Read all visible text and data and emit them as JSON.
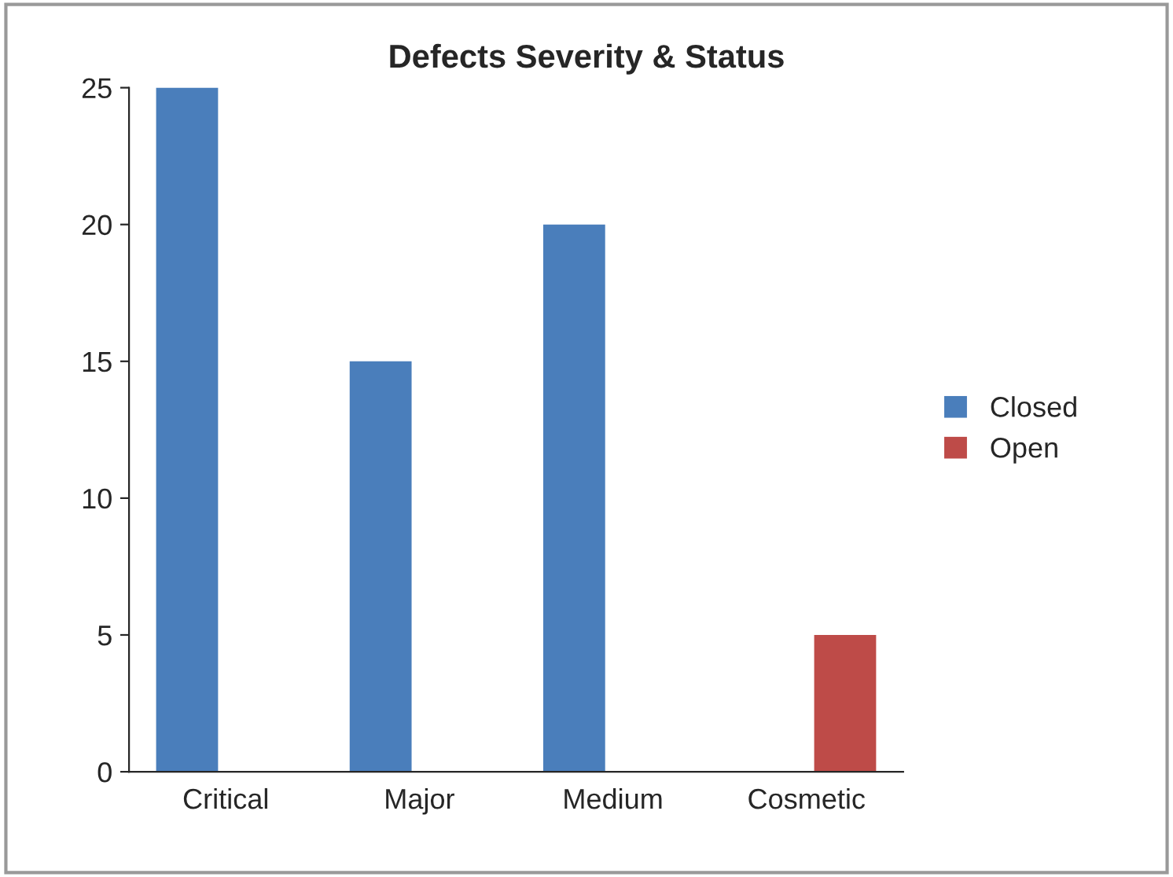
{
  "chart_data": {
    "type": "bar",
    "title": "Defects Severity & Status",
    "categories": [
      "Critical",
      "Major",
      "Medium",
      "Cosmetic"
    ],
    "series": [
      {
        "name": "Closed",
        "color": "#4a7ebb",
        "values": [
          25,
          15,
          20,
          0
        ]
      },
      {
        "name": "Open",
        "color": "#be4b48",
        "values": [
          0,
          0,
          0,
          5
        ]
      }
    ],
    "ylim": [
      0,
      25
    ],
    "yticks": [
      0,
      5,
      10,
      15,
      20,
      25
    ],
    "grid": false,
    "legend": "right"
  }
}
